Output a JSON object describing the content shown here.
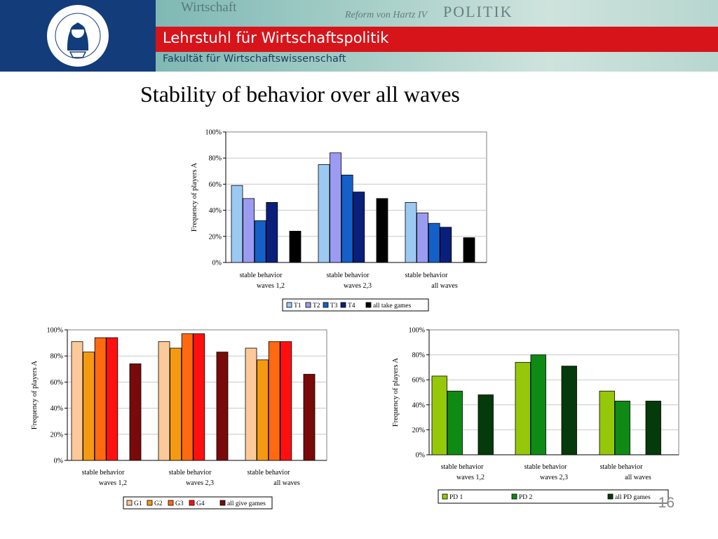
{
  "header": {
    "chair_title": "Lehrstuhl für Wirtschaftspolitik",
    "faculty": "Fakultät für Wirtschaftswissenschaft",
    "logo_ring_text": "OTTO-VON-GUERICKE-UNIVERSITÄT MAGDEBURG",
    "background_words": [
      "Wirtschaft",
      "POLITIK",
      "Reform von Hartz IV"
    ],
    "colors": {
      "logo_bg": "#123c7a",
      "red_bar": "#d8141b"
    }
  },
  "page": {
    "title": "Stability of behavior over all waves",
    "number": "16"
  },
  "chart_data": [
    {
      "type": "bar",
      "categories": [
        "stable behavior waves 1,2",
        "stable behavior waves 2,3",
        "stable behavior all waves"
      ],
      "category_lines": [
        [
          "stable behavior",
          "waves 1,2"
        ],
        [
          "stable behavior",
          "waves 2,3"
        ],
        [
          "stable behavior",
          "all waves"
        ]
      ],
      "series": [
        {
          "name": "T1",
          "color": "#9cc9f2",
          "values": [
            59,
            75,
            46
          ]
        },
        {
          "name": "T2",
          "color": "#9b9bf2",
          "values": [
            49,
            84,
            38
          ]
        },
        {
          "name": "T3",
          "color": "#1460c8",
          "values": [
            32,
            67,
            30
          ]
        },
        {
          "name": "T4",
          "color": "#0a1f7a",
          "values": [
            46,
            54,
            27
          ]
        },
        {
          "name": "all take games",
          "color": "#000000",
          "values": [
            24,
            49,
            19
          ]
        }
      ],
      "ylabel": "Frequency of players A",
      "yticks": [
        "0%",
        "20%",
        "40%",
        "60%",
        "80%",
        "100%"
      ],
      "ylim": [
        0,
        100
      ],
      "grid": true,
      "legend": "bottom"
    },
    {
      "type": "bar",
      "categories": [
        "stable behavior waves 1,2",
        "stable behavior waves 2,3",
        "stable behavior all waves"
      ],
      "category_lines": [
        [
          "stable behavior",
          "waves 1,2"
        ],
        [
          "stable behavior",
          "waves 2,3"
        ],
        [
          "stable behavior",
          "all waves"
        ]
      ],
      "series": [
        {
          "name": "G1",
          "color": "#fcc99a",
          "values": [
            91,
            91,
            86
          ]
        },
        {
          "name": "G2",
          "color": "#f59a10",
          "values": [
            83,
            86,
            77
          ]
        },
        {
          "name": "G3",
          "color": "#ff6a10",
          "values": [
            94,
            97,
            91
          ]
        },
        {
          "name": "G4",
          "color": "#ff1010",
          "values": [
            94,
            97,
            91
          ]
        },
        {
          "name": "all give games",
          "color": "#7a0a0a",
          "values": [
            74,
            83,
            66
          ]
        }
      ],
      "ylabel": "Frequency of players A",
      "yticks": [
        "0%",
        "20%",
        "40%",
        "60%",
        "80%",
        "100%"
      ],
      "ylim": [
        0,
        100
      ],
      "grid": true,
      "legend": "bottom"
    },
    {
      "type": "bar",
      "categories": [
        "stable behavior waves 1,2",
        "stable behavior waves 2,3",
        "stable behavior all waves"
      ],
      "category_lines": [
        [
          "stable behavior",
          "waves 1,2"
        ],
        [
          "stable behavior",
          "waves 2,3"
        ],
        [
          "stable behavior",
          "all waves"
        ]
      ],
      "series": [
        {
          "name": "PD 1",
          "color": "#96c80a",
          "values": [
            63,
            74,
            51
          ],
          "slot": 0
        },
        {
          "name": "PD 2",
          "color": "#0f8a14",
          "values": [
            51,
            80,
            43
          ],
          "slot": 1
        },
        {
          "name": "all PD games",
          "color": "#053a0a",
          "values": [
            48,
            71,
            43
          ],
          "slot": 3
        }
      ],
      "ylabel": "Frequency of players A",
      "yticks": [
        "0%",
        "20%",
        "40%",
        "60%",
        "80%",
        "100%"
      ],
      "ylim": [
        0,
        100
      ],
      "grid": true,
      "legend": "bottom"
    }
  ]
}
